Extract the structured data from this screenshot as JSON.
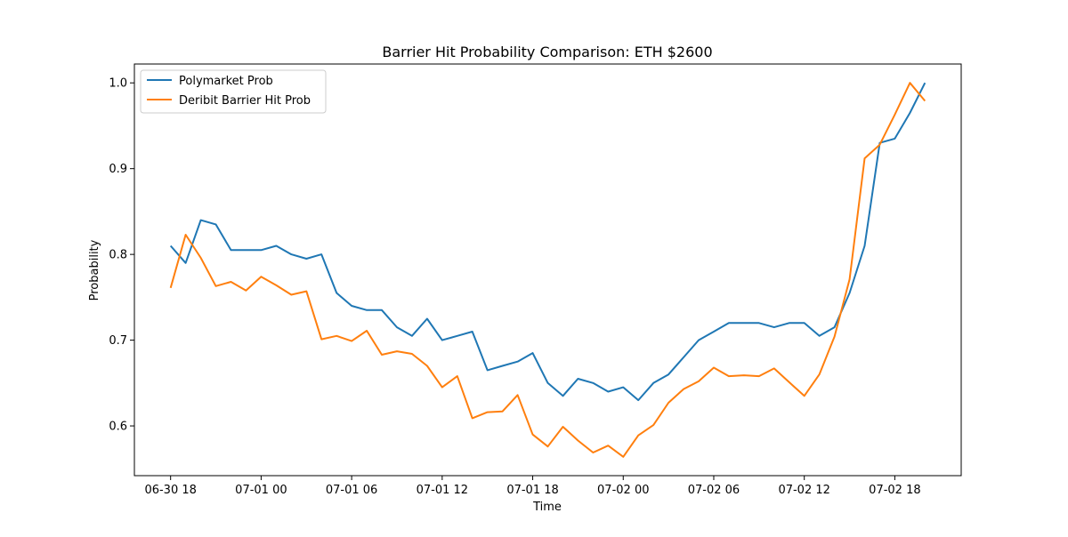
{
  "chart_data": {
    "type": "line",
    "title": "Barrier Hit Probability Comparison: ETH $2600",
    "xlabel": "Time",
    "ylabel": "Probability",
    "x": [
      "06-30 18:00",
      "06-30 19:00",
      "06-30 20:00",
      "06-30 21:00",
      "06-30 22:00",
      "06-30 23:00",
      "07-01 00:00",
      "07-01 01:00",
      "07-01 02:00",
      "07-01 03:00",
      "07-01 04:00",
      "07-01 05:00",
      "07-01 06:00",
      "07-01 07:00",
      "07-01 08:00",
      "07-01 09:00",
      "07-01 10:00",
      "07-01 11:00",
      "07-01 12:00",
      "07-01 13:00",
      "07-01 14:00",
      "07-01 15:00",
      "07-01 16:00",
      "07-01 17:00",
      "07-01 18:00",
      "07-01 19:00",
      "07-01 20:00",
      "07-01 21:00",
      "07-01 22:00",
      "07-01 23:00",
      "07-02 00:00",
      "07-02 01:00",
      "07-02 02:00",
      "07-02 03:00",
      "07-02 04:00",
      "07-02 05:00",
      "07-02 06:00",
      "07-02 07:00",
      "07-02 08:00",
      "07-02 09:00",
      "07-02 10:00",
      "07-02 11:00",
      "07-02 12:00",
      "07-02 13:00",
      "07-02 14:00",
      "07-02 15:00",
      "07-02 16:00",
      "07-02 17:00",
      "07-02 18:00",
      "07-02 19:00",
      "07-02 20:00"
    ],
    "xticks": [
      "06-30 18",
      "07-01 00",
      "07-01 06",
      "07-01 12",
      "07-01 18",
      "07-02 00",
      "07-02 06",
      "07-02 12",
      "07-02 18"
    ],
    "yticks": [
      "0.6",
      "0.7",
      "0.8",
      "0.9",
      "1.0"
    ],
    "ylim": [
      0.542,
      1.022
    ],
    "xlim": [
      "06-30 15:36",
      "07-02 22:24"
    ],
    "grid": false,
    "legend_position": "upper-left",
    "series": [
      {
        "name": "Polymarket Prob",
        "color": "#1f77b4",
        "values": [
          0.81,
          0.79,
          0.84,
          0.835,
          0.805,
          0.805,
          0.805,
          0.81,
          0.8,
          0.795,
          0.8,
          0.755,
          0.74,
          0.735,
          0.735,
          0.715,
          0.705,
          0.725,
          0.7,
          0.705,
          0.71,
          0.665,
          0.67,
          0.675,
          0.685,
          0.65,
          0.635,
          0.655,
          0.65,
          0.64,
          0.645,
          0.63,
          0.65,
          0.66,
          0.68,
          0.7,
          0.71,
          0.72,
          0.72,
          0.72,
          0.715,
          0.72,
          0.72,
          0.705,
          0.715,
          0.755,
          0.81,
          0.93,
          0.935,
          0.965,
          1.0
        ]
      },
      {
        "name": "Deribit Barrier Hit Prob",
        "color": "#ff7f0e",
        "values": [
          0.761,
          0.823,
          0.796,
          0.763,
          0.768,
          0.758,
          0.774,
          0.764,
          0.753,
          0.757,
          0.701,
          0.705,
          0.699,
          0.711,
          0.683,
          0.687,
          0.684,
          0.67,
          0.645,
          0.658,
          0.609,
          0.616,
          0.617,
          0.636,
          0.59,
          0.576,
          0.599,
          0.583,
          0.569,
          0.577,
          0.564,
          0.589,
          0.601,
          0.627,
          0.643,
          0.652,
          0.668,
          0.658,
          0.659,
          0.658,
          0.667,
          0.651,
          0.635,
          0.66,
          0.704,
          0.771,
          0.912,
          0.928,
          0.963,
          1.0,
          0.979
        ]
      }
    ]
  }
}
